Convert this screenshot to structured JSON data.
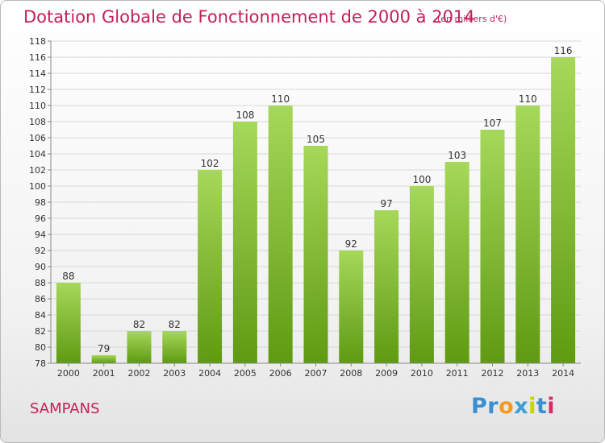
{
  "title": "Dotation Globale de Fonctionnement de 2000 à 2014",
  "subtitle": "(en milliers d'€)",
  "commune": "SAMPANS",
  "logo": {
    "text": "Proxiti",
    "letter_colors": [
      "#3a8fd0",
      "#3a8fd0",
      "#f29a1f",
      "#3aa0d8",
      "#c8d400",
      "#3a8fd0",
      "#d82a6a"
    ]
  },
  "colors": {
    "title": "#c41e5a",
    "bar_top": "#a6d85a",
    "bar_bottom": "#5f9a12",
    "grid": "#d8d8d8",
    "axis": "#888888"
  },
  "chart_data": {
    "type": "bar",
    "title": "Dotation Globale de Fonctionnement de 2000 à 2014",
    "subtitle": "(en milliers d'€)",
    "xlabel": "",
    "ylabel": "",
    "categories": [
      "2000",
      "2001",
      "2002",
      "2003",
      "2004",
      "2005",
      "2006",
      "2007",
      "2008",
      "2009",
      "2010",
      "2011",
      "2012",
      "2013",
      "2014"
    ],
    "values": [
      88,
      79,
      82,
      82,
      102,
      108,
      110,
      105,
      92,
      97,
      100,
      103,
      107,
      110,
      116
    ],
    "ylim": [
      78,
      118
    ],
    "yticks": [
      78,
      80,
      82,
      84,
      86,
      88,
      90,
      92,
      94,
      96,
      98,
      100,
      102,
      104,
      106,
      108,
      110,
      112,
      114,
      116,
      118
    ],
    "grid": true,
    "legend": "none"
  }
}
